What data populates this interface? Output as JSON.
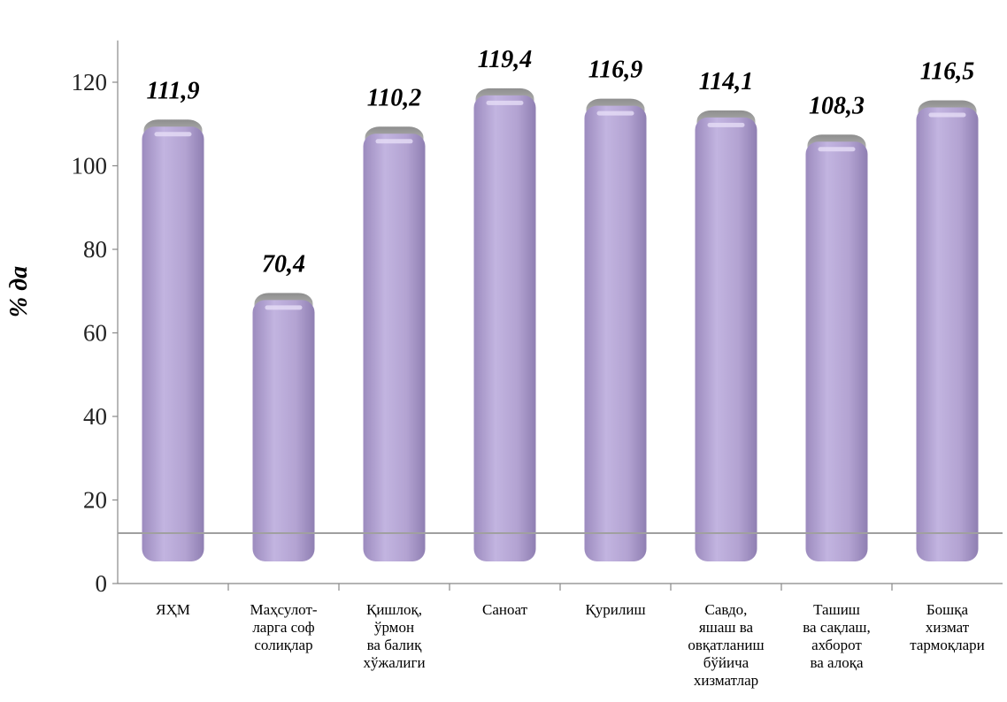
{
  "chart_data": {
    "type": "bar",
    "title": "",
    "xlabel": "",
    "ylabel": "% да",
    "ylim": [
      0,
      130
    ],
    "yticks": [
      0,
      20,
      40,
      60,
      80,
      100,
      120
    ],
    "grid": false,
    "bar_color": "#B6A6D3",
    "reference_line_color": "#A0A0A0",
    "categories": [
      [
        "ЯҲМ"
      ],
      [
        "Маҳсулот-",
        "ларга соф",
        "солиқлар"
      ],
      [
        "Қишлоқ,",
        "ўрмон",
        "ва балиқ",
        "хўжалиги"
      ],
      [
        "Саноат"
      ],
      [
        "Қурилиш"
      ],
      [
        "Савдо,",
        "яшаш ва",
        "овқатланиш",
        "бўйича",
        "хизматлар"
      ],
      [
        "Ташиш",
        "ва сақлаш,",
        "ахборот",
        "ва алоқа"
      ],
      [
        "Бошқа",
        "хизмат",
        "тармоқлари"
      ]
    ],
    "values": [
      111.9,
      70.4,
      110.2,
      119.4,
      116.9,
      114.1,
      108.3,
      116.5
    ],
    "data_labels": [
      "111,9",
      "70,4",
      "110,2",
      "119,4",
      "116,9",
      "114,1",
      "108,3",
      "116,5"
    ]
  }
}
